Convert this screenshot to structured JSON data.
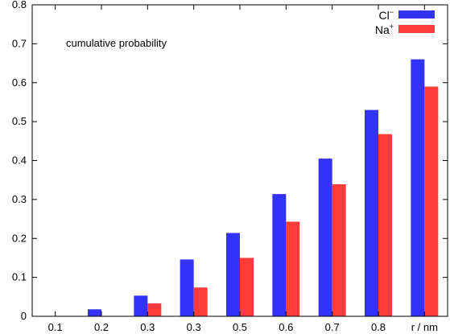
{
  "chart_data": {
    "type": "bar",
    "title": "",
    "xlabel": "",
    "ylabel": "",
    "annotation": "cumulative probability",
    "categories": [
      "0.1",
      "0.2",
      "0.3",
      "0.3",
      "0.5",
      "0.6",
      "0.7",
      "0.8",
      "r / nm"
    ],
    "series": [
      {
        "name_base": "Cl",
        "name_sup": "−",
        "color": "#3333ff",
        "values": [
          0.0,
          0.018,
          0.053,
          0.146,
          0.214,
          0.314,
          0.405,
          0.53,
          0.66
        ]
      },
      {
        "name_base": "Na",
        "name_sup": "+",
        "color": "#ff3b3b",
        "values": [
          0.0,
          0.0,
          0.033,
          0.074,
          0.15,
          0.243,
          0.339,
          0.468,
          0.59
        ]
      }
    ],
    "yticks": [
      "0",
      "0.1",
      "0.2",
      "0.3",
      "0.4",
      "0.5",
      "0.6",
      "0.7",
      "0.8"
    ],
    "ylim": [
      0,
      0.8
    ],
    "grid": false,
    "legend_position": "top-right"
  }
}
